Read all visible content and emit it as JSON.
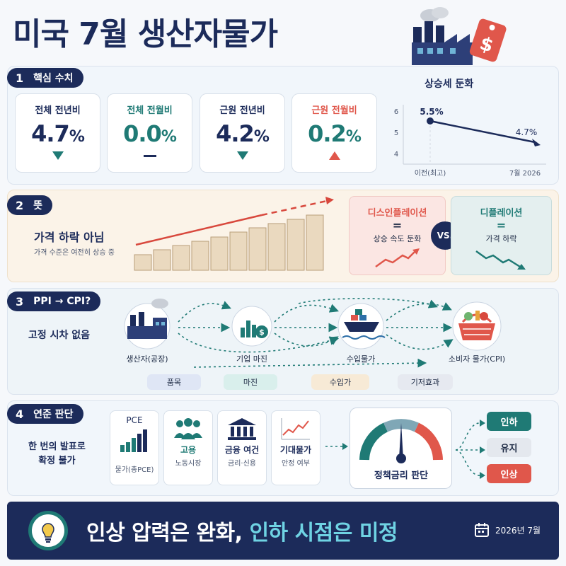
{
  "header": {
    "title": "미국 7월 생산자물가"
  },
  "section1": {
    "num": "1",
    "label": "핵심 수치",
    "cards": [
      {
        "label": "전체 전년비",
        "value": "4.7",
        "unit": "%",
        "trend": "down"
      },
      {
        "label": "전체 전월비",
        "value": "0.0",
        "unit": "%",
        "trend": "flat"
      },
      {
        "label": "근원 전년비",
        "value": "4.2",
        "unit": "%",
        "trend": "down"
      },
      {
        "label": "근원 전월비",
        "value": "0.2",
        "unit": "%",
        "trend": "up"
      }
    ],
    "mini_chart": {
      "title": "상승세 둔화",
      "y_ticks": [
        "6",
        "5",
        "4"
      ],
      "x_labels": [
        "이전(최고)",
        "7월 2026"
      ],
      "start_label": "5.5%",
      "end_label": "4.7%"
    }
  },
  "chart_data": {
    "type": "line",
    "title": "상승세 둔화",
    "x": [
      "이전(최고)",
      "7월 2026"
    ],
    "series": [
      {
        "values": [
          5.5,
          4.7
        ]
      }
    ],
    "ylim": [
      4,
      6
    ],
    "yticks": [
      4,
      5,
      6
    ]
  },
  "section2": {
    "num": "2",
    "label": "뜻",
    "main": "가격 하락 아님",
    "sub": "가격 수준은 여전히 상승 중",
    "disinflation": {
      "title": "디스인플레이션",
      "eq": "=",
      "desc": "상승 속도 둔화"
    },
    "vs": "VS.",
    "deflation": {
      "title": "디플레이션",
      "eq": "=",
      "desc": "가격 하락"
    }
  },
  "section3": {
    "num": "3",
    "label": "PPI → CPI?",
    "side": "고정 시차 없음",
    "nodes": [
      "생산자(공장)",
      "기업 마진",
      "수입물가",
      "소비자 물가(CPI)"
    ],
    "chips": [
      "품목",
      "마진",
      "수입가",
      "기저효과"
    ]
  },
  "section4": {
    "num": "4",
    "label": "연준 판단",
    "side_line1": "한 번의 발표로",
    "side_line2": "확정 불가",
    "cards": [
      {
        "top": "PCE",
        "title": "",
        "desc": "물가(총PCE)"
      },
      {
        "top": "",
        "title": "고용",
        "desc": "노동시장"
      },
      {
        "top": "",
        "title": "금융 여건",
        "desc": "금리·신용"
      },
      {
        "top": "",
        "title": "기대물가",
        "desc": "안정 여부"
      }
    ],
    "gauge_label": "정책금리 판단",
    "options": [
      "인하",
      "유지",
      "인상"
    ]
  },
  "footer": {
    "text_a": "인상 압력은 완화, ",
    "text_b": "인하 시점은 미정",
    "date": "2026년 7월"
  },
  "colors": {
    "navy": "#1c2b5a",
    "teal": "#1f7a75",
    "red": "#e0574b",
    "cyan": "#6fd3e3"
  }
}
